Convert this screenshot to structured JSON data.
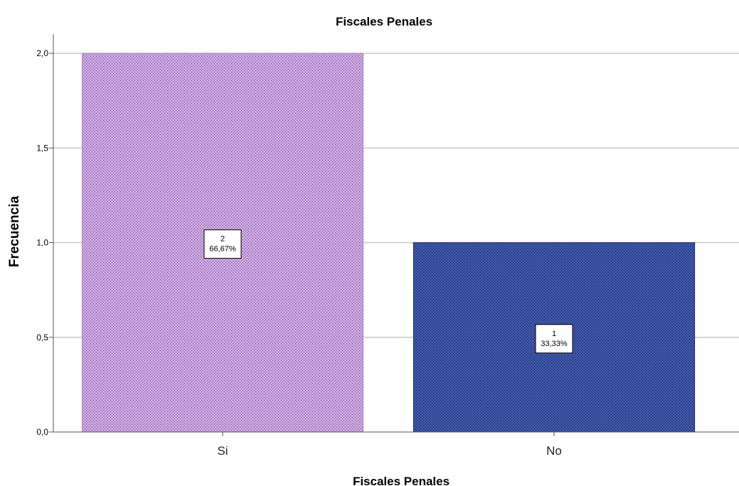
{
  "chart_data": {
    "type": "bar",
    "title": "Fiscales Penales",
    "xlabel": "Fiscales Penales",
    "ylabel": "Frecuencia",
    "categories": [
      "Si",
      "No"
    ],
    "values": [
      2,
      1
    ],
    "data_labels": [
      {
        "count": "2",
        "percent": "66,67%"
      },
      {
        "count": "1",
        "percent": "33,33%"
      }
    ],
    "colors": [
      "#c9a4e0",
      "#3c55a5"
    ],
    "pattern": "dotted",
    "ylim": [
      0,
      2.1
    ],
    "yticks": [
      {
        "value": 0,
        "label": "0,0"
      },
      {
        "value": 0.5,
        "label": "0,5"
      },
      {
        "value": 1,
        "label": "1,0"
      },
      {
        "value": 1.5,
        "label": "1,5"
      },
      {
        "value": 2,
        "label": "2,0"
      }
    ],
    "grid": true,
    "legend": "none"
  }
}
